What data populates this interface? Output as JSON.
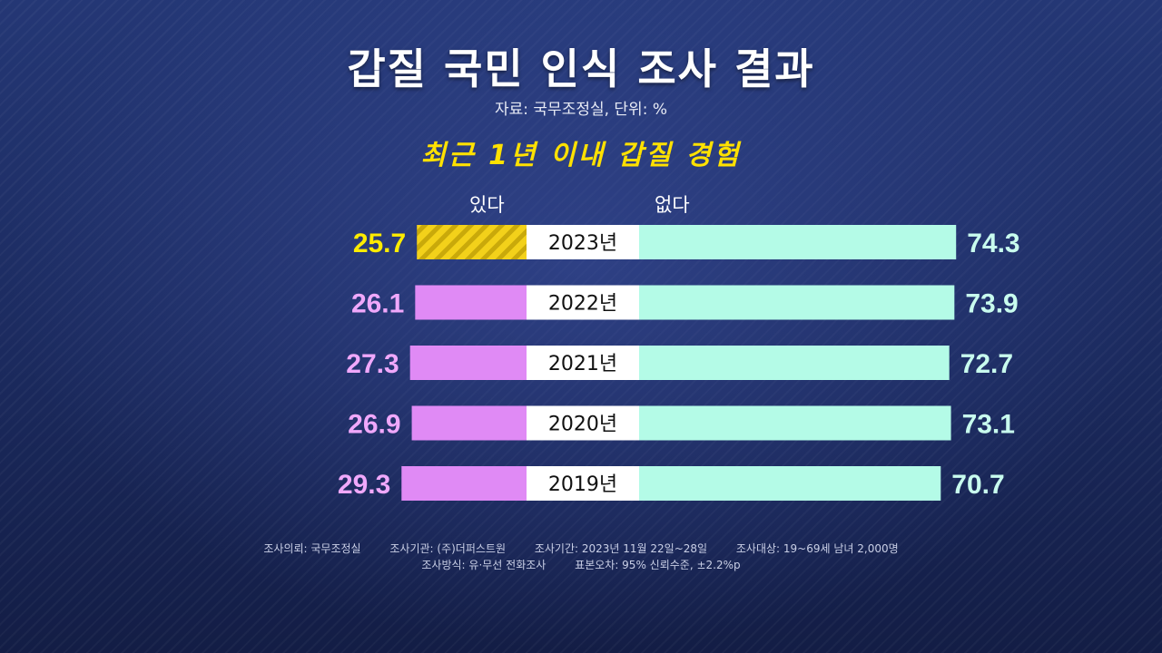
{
  "title": "갑질 국민 인식 조사 결과",
  "source": "자료: 국무조정실, 단위: %",
  "chart_data": {
    "type": "bar",
    "subtitle": "최근 1년 이내 갑질 경험",
    "categories": [
      "2023년",
      "2022년",
      "2021년",
      "2020년",
      "2019년"
    ],
    "series": [
      {
        "name": "있다",
        "values": [
          25.7,
          26.1,
          27.3,
          26.9,
          29.3
        ]
      },
      {
        "name": "없다",
        "values": [
          74.3,
          73.9,
          72.7,
          73.1,
          70.7
        ]
      }
    ],
    "stacked": true,
    "highlight_category": "2023년"
  },
  "colors": {
    "yes": "#e08af5",
    "no": "#b4fbe7",
    "highlight": "#f3d11a",
    "highlight_stripe": "#c9a90a",
    "yes_label": "#f0a8fb",
    "no_label": "#c8fcee",
    "highlight_label": "#ffec00"
  },
  "footnote": {
    "line1": [
      "조사의뢰: 국무조정실",
      "조사기관: (주)더퍼스트원",
      "조사기간: 2023년 11월 22일~28일",
      "조사대상: 19~69세 남녀 2,000명"
    ],
    "line2": [
      "조사방식: 유·무선 전화조사",
      "표본오차: 95% 신뢰수준, ±2.2%p"
    ]
  }
}
